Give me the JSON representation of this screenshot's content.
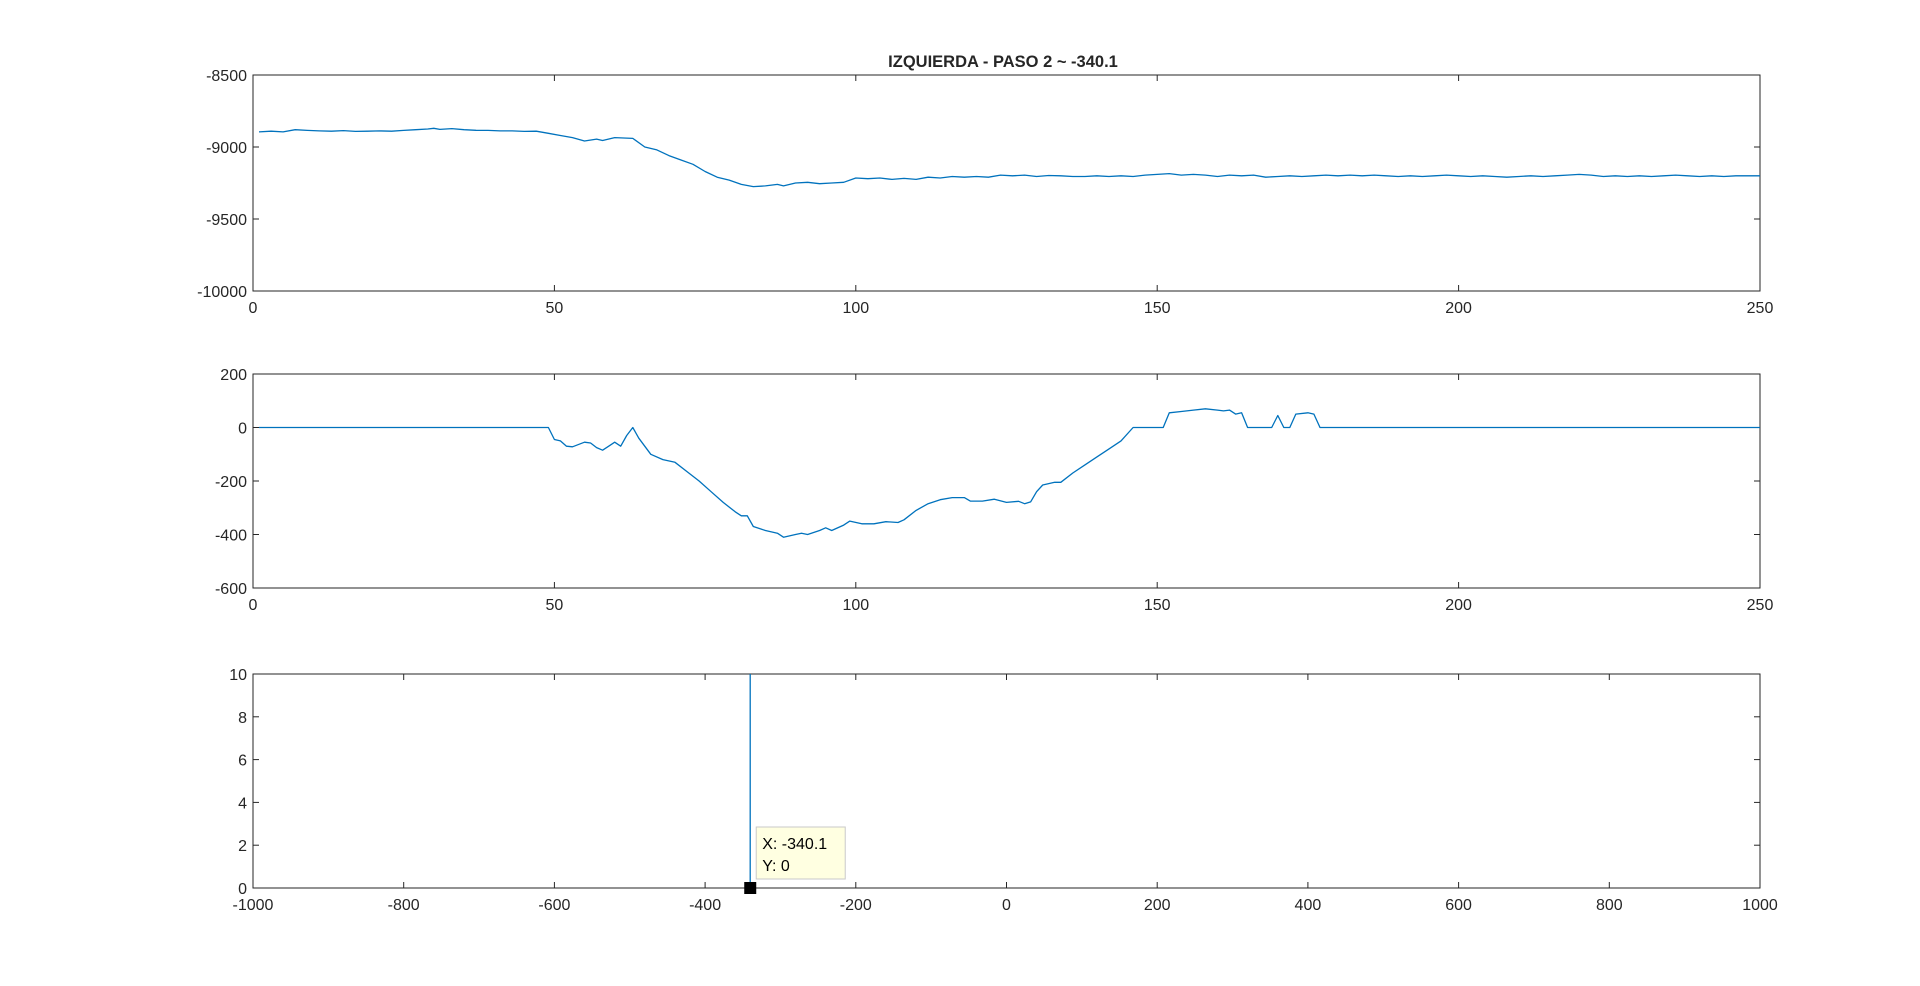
{
  "colors": {
    "series": "#0072BD",
    "axes": "#262626",
    "tooltip_bg": "#FFFFE1",
    "marker": "#000000"
  },
  "chart_data": [
    {
      "type": "line",
      "title": "IZQUIERDA - PASO 2 ~ -340.1",
      "xlim": [
        0,
        250
      ],
      "ylim": [
        -10000,
        -8500
      ],
      "xticks": [
        0,
        50,
        100,
        150,
        200,
        250
      ],
      "yticks": [
        -8500,
        -9000,
        -9500,
        -10000
      ],
      "xlabel": "",
      "ylabel": "",
      "grid": false,
      "series": [
        {
          "points": [
            [
              1,
              -8895
            ],
            [
              3,
              -8890
            ],
            [
              5,
              -8895
            ],
            [
              7,
              -8880
            ],
            [
              9,
              -8885
            ],
            [
              11,
              -8888
            ],
            [
              13,
              -8890
            ],
            [
              15,
              -8886
            ],
            [
              17,
              -8892
            ],
            [
              19,
              -8890
            ],
            [
              21,
              -8888
            ],
            [
              23,
              -8890
            ],
            [
              25,
              -8885
            ],
            [
              27,
              -8880
            ],
            [
              29,
              -8875
            ],
            [
              30,
              -8870
            ],
            [
              31,
              -8878
            ],
            [
              33,
              -8872
            ],
            [
              35,
              -8880
            ],
            [
              37,
              -8884
            ],
            [
              39,
              -8885
            ],
            [
              41,
              -8888
            ],
            [
              43,
              -8888
            ],
            [
              45,
              -8892
            ],
            [
              47,
              -8890
            ],
            [
              49,
              -8905
            ],
            [
              51,
              -8920
            ],
            [
              53,
              -8935
            ],
            [
              55,
              -8958
            ],
            [
              57,
              -8945
            ],
            [
              58,
              -8955
            ],
            [
              60,
              -8935
            ],
            [
              62,
              -8938
            ],
            [
              63,
              -8940
            ],
            [
              65,
              -9000
            ],
            [
              67,
              -9020
            ],
            [
              69,
              -9060
            ],
            [
              71,
              -9090
            ],
            [
              73,
              -9120
            ],
            [
              75,
              -9170
            ],
            [
              77,
              -9210
            ],
            [
              79,
              -9230
            ],
            [
              81,
              -9260
            ],
            [
              83,
              -9275
            ],
            [
              85,
              -9270
            ],
            [
              87,
              -9260
            ],
            [
              88,
              -9270
            ],
            [
              90,
              -9250
            ],
            [
              92,
              -9245
            ],
            [
              94,
              -9255
            ],
            [
              96,
              -9250
            ],
            [
              98,
              -9245
            ],
            [
              100,
              -9215
            ],
            [
              102,
              -9220
            ],
            [
              104,
              -9215
            ],
            [
              106,
              -9225
            ],
            [
              108,
              -9218
            ],
            [
              110,
              -9225
            ],
            [
              112,
              -9210
            ],
            [
              114,
              -9215
            ],
            [
              116,
              -9205
            ],
            [
              118,
              -9210
            ],
            [
              120,
              -9205
            ],
            [
              122,
              -9210
            ],
            [
              124,
              -9195
            ],
            [
              126,
              -9200
            ],
            [
              128,
              -9195
            ],
            [
              130,
              -9205
            ],
            [
              132,
              -9198
            ],
            [
              134,
              -9200
            ],
            [
              136,
              -9205
            ],
            [
              138,
              -9205
            ],
            [
              140,
              -9200
            ],
            [
              142,
              -9205
            ],
            [
              144,
              -9200
            ],
            [
              146,
              -9205
            ],
            [
              148,
              -9195
            ],
            [
              150,
              -9190
            ],
            [
              152,
              -9185
            ],
            [
              154,
              -9195
            ],
            [
              156,
              -9190
            ],
            [
              158,
              -9195
            ],
            [
              160,
              -9205
            ],
            [
              162,
              -9195
            ],
            [
              164,
              -9200
            ],
            [
              166,
              -9195
            ],
            [
              168,
              -9210
            ],
            [
              170,
              -9205
            ],
            [
              172,
              -9200
            ],
            [
              174,
              -9205
            ],
            [
              176,
              -9200
            ],
            [
              178,
              -9195
            ],
            [
              180,
              -9200
            ],
            [
              182,
              -9195
            ],
            [
              184,
              -9200
            ],
            [
              186,
              -9195
            ],
            [
              188,
              -9200
            ],
            [
              190,
              -9205
            ],
            [
              192,
              -9200
            ],
            [
              194,
              -9205
            ],
            [
              196,
              -9200
            ],
            [
              198,
              -9195
            ],
            [
              200,
              -9200
            ],
            [
              202,
              -9205
            ],
            [
              204,
              -9200
            ],
            [
              206,
              -9205
            ],
            [
              208,
              -9210
            ],
            [
              210,
              -9205
            ],
            [
              212,
              -9200
            ],
            [
              214,
              -9205
            ],
            [
              216,
              -9200
            ],
            [
              218,
              -9195
            ],
            [
              220,
              -9190
            ],
            [
              222,
              -9195
            ],
            [
              224,
              -9205
            ],
            [
              226,
              -9200
            ],
            [
              228,
              -9205
            ],
            [
              230,
              -9200
            ],
            [
              232,
              -9205
            ],
            [
              234,
              -9200
            ],
            [
              236,
              -9195
            ],
            [
              238,
              -9200
            ],
            [
              240,
              -9205
            ],
            [
              242,
              -9200
            ],
            [
              244,
              -9205
            ],
            [
              246,
              -9200
            ],
            [
              248,
              -9200
            ],
            [
              250,
              -9200
            ]
          ]
        }
      ]
    },
    {
      "type": "line",
      "title": "",
      "xlim": [
        0,
        250
      ],
      "ylim": [
        -600,
        200
      ],
      "xticks": [
        0,
        50,
        100,
        150,
        200,
        250
      ],
      "yticks": [
        200,
        0,
        -200,
        -400,
        -600
      ],
      "xlabel": "",
      "ylabel": "",
      "grid": false,
      "series": [
        {
          "points": [
            [
              1,
              0
            ],
            [
              49,
              0
            ],
            [
              50,
              -45
            ],
            [
              51,
              -50
            ],
            [
              52,
              -70
            ],
            [
              53,
              -72
            ],
            [
              55,
              -55
            ],
            [
              56,
              -58
            ],
            [
              57,
              -75
            ],
            [
              58,
              -85
            ],
            [
              59,
              -70
            ],
            [
              60,
              -55
            ],
            [
              61,
              -70
            ],
            [
              62,
              -30
            ],
            [
              63,
              0
            ],
            [
              64,
              -40
            ],
            [
              66,
              -100
            ],
            [
              68,
              -120
            ],
            [
              70,
              -130
            ],
            [
              72,
              -165
            ],
            [
              74,
              -200
            ],
            [
              76,
              -240
            ],
            [
              78,
              -280
            ],
            [
              80,
              -315
            ],
            [
              81,
              -330
            ],
            [
              82,
              -330
            ],
            [
              83,
              -370
            ],
            [
              85,
              -385
            ],
            [
              87,
              -395
            ],
            [
              88,
              -410
            ],
            [
              90,
              -400
            ],
            [
              91,
              -395
            ],
            [
              92,
              -400
            ],
            [
              94,
              -385
            ],
            [
              95,
              -375
            ],
            [
              96,
              -385
            ],
            [
              98,
              -365
            ],
            [
              99,
              -350
            ],
            [
              101,
              -360
            ],
            [
              103,
              -360
            ],
            [
              105,
              -352
            ],
            [
              107,
              -355
            ],
            [
              108,
              -345
            ],
            [
              110,
              -310
            ],
            [
              112,
              -285
            ],
            [
              114,
              -270
            ],
            [
              116,
              -262
            ],
            [
              118,
              -262
            ],
            [
              119,
              -275
            ],
            [
              121,
              -275
            ],
            [
              123,
              -268
            ],
            [
              125,
              -280
            ],
            [
              127,
              -276
            ],
            [
              128,
              -285
            ],
            [
              129,
              -278
            ],
            [
              130,
              -240
            ],
            [
              131,
              -215
            ],
            [
              133,
              -205
            ],
            [
              134,
              -205
            ],
            [
              136,
              -170
            ],
            [
              138,
              -140
            ],
            [
              140,
              -110
            ],
            [
              142,
              -80
            ],
            [
              144,
              -50
            ],
            [
              146,
              0
            ],
            [
              150,
              0
            ],
            [
              151,
              0
            ],
            [
              152,
              55
            ],
            [
              154,
              60
            ],
            [
              156,
              65
            ],
            [
              158,
              70
            ],
            [
              160,
              65
            ],
            [
              161,
              62
            ],
            [
              162,
              65
            ],
            [
              163,
              50
            ],
            [
              164,
              55
            ],
            [
              165,
              0
            ],
            [
              167,
              0
            ],
            [
              168,
              0
            ],
            [
              169,
              0
            ],
            [
              170,
              45
            ],
            [
              171,
              0
            ],
            [
              172,
              0
            ],
            [
              173,
              50
            ],
            [
              175,
              55
            ],
            [
              176,
              50
            ],
            [
              177,
              0
            ],
            [
              250,
              0
            ]
          ]
        }
      ]
    },
    {
      "type": "line",
      "title": "",
      "xlim": [
        -1000,
        1000
      ],
      "ylim": [
        0,
        10
      ],
      "xticks": [
        -1000,
        -800,
        -600,
        -400,
        -200,
        0,
        200,
        400,
        600,
        800,
        1000
      ],
      "yticks": [
        10,
        8,
        6,
        4,
        2,
        0
      ],
      "xlabel": "",
      "ylabel": "",
      "grid": false,
      "series": [
        {
          "points": [
            [
              -340.1,
              0
            ],
            [
              -340.1,
              10
            ]
          ]
        }
      ],
      "annotations": [
        {
          "x": -340.1,
          "y": 0,
          "lines": [
            "X: -340.1",
            "Y: 0"
          ]
        }
      ]
    }
  ]
}
